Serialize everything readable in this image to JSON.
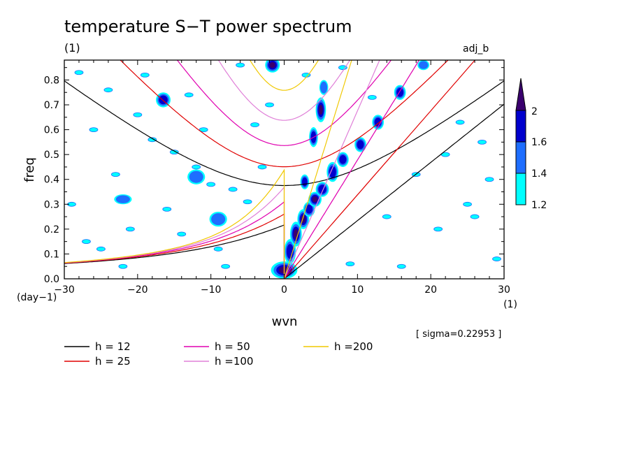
{
  "chart_data": {
    "type": "contour",
    "title": "temperature S−T power spectrum",
    "subtitle_units": "(1)",
    "corner_label": "adj_b",
    "xlabel": "wvn",
    "x_units": "(1)",
    "ylabel": "freq",
    "y_units": "(day−1)",
    "xlim": [
      -30,
      30
    ],
    "ylim": [
      0,
      0.88
    ],
    "x_ticks": [
      -30,
      -20,
      -10,
      0,
      10,
      20,
      30
    ],
    "x_tick_labels": [
      "−30",
      "−20",
      "−10",
      "0",
      "10",
      "20",
      "30"
    ],
    "y_ticks": [
      0.0,
      0.1,
      0.2,
      0.3,
      0.4,
      0.5,
      0.6,
      0.7,
      0.8
    ],
    "y_tick_labels": [
      "0.0",
      "0.1",
      "0.2",
      "0.3",
      "0.4",
      "0.5",
      "0.6",
      "0.7",
      "0.8"
    ],
    "sigma_label": "[ sigma=0.22953 ]",
    "colorbar": {
      "levels": [
        1.2,
        1.4,
        1.6,
        2
      ],
      "level_labels": [
        "1.2",
        "1.4",
        "1.6",
        "2"
      ],
      "colors": [
        "#00ffff",
        "#1e6eff",
        "#0000cd",
        "#3a006e"
      ]
    },
    "dispersion_curves": [
      {
        "label": "h = 12",
        "h": 12,
        "color": "#000000"
      },
      {
        "label": "h = 25",
        "h": 25,
        "color": "#e00000"
      },
      {
        "label": "h = 50",
        "h": 50,
        "color": "#e000b0"
      },
      {
        "label": "h =100",
        "h": 100,
        "color": "#e080d8"
      },
      {
        "label": "h =200",
        "h": 200,
        "color": "#f0c800"
      }
    ],
    "spectral_blobs": [
      {
        "x": 0,
        "y": 0.035,
        "rx": 1.8,
        "ry": 0.035,
        "level": 4
      },
      {
        "x": 0.8,
        "y": 0.11,
        "rx": 0.8,
        "ry": 0.05,
        "level": 3
      },
      {
        "x": 1.6,
        "y": 0.18,
        "rx": 0.8,
        "ry": 0.05,
        "level": 4
      },
      {
        "x": 2.6,
        "y": 0.24,
        "rx": 0.8,
        "ry": 0.04,
        "level": 4
      },
      {
        "x": 3.4,
        "y": 0.28,
        "rx": 0.8,
        "ry": 0.03,
        "level": 3
      },
      {
        "x": 4.2,
        "y": 0.32,
        "rx": 0.9,
        "ry": 0.03,
        "level": 4
      },
      {
        "x": 5.2,
        "y": 0.36,
        "rx": 0.9,
        "ry": 0.03,
        "level": 3
      },
      {
        "x": 6.6,
        "y": 0.43,
        "rx": 0.8,
        "ry": 0.04,
        "level": 3
      },
      {
        "x": 8.0,
        "y": 0.48,
        "rx": 0.8,
        "ry": 0.03,
        "level": 3
      },
      {
        "x": 10.4,
        "y": 0.54,
        "rx": 0.8,
        "ry": 0.03,
        "level": 3
      },
      {
        "x": 12.8,
        "y": 0.63,
        "rx": 0.8,
        "ry": 0.03,
        "level": 3
      },
      {
        "x": 15.8,
        "y": 0.75,
        "rx": 0.8,
        "ry": 0.03,
        "level": 3
      },
      {
        "x": 5.0,
        "y": 0.68,
        "rx": 0.7,
        "ry": 0.05,
        "level": 4
      },
      {
        "x": 4.0,
        "y": 0.57,
        "rx": 0.6,
        "ry": 0.04,
        "level": 3
      },
      {
        "x": 5.4,
        "y": 0.77,
        "rx": 0.6,
        "ry": 0.03,
        "level": 2
      },
      {
        "x": -1.6,
        "y": 0.86,
        "rx": 1.0,
        "ry": 0.03,
        "level": 4
      },
      {
        "x": 2.8,
        "y": 0.39,
        "rx": 0.6,
        "ry": 0.03,
        "level": 3
      },
      {
        "x": -16.5,
        "y": 0.72,
        "rx": 1.0,
        "ry": 0.03,
        "level": 3
      },
      {
        "x": -9.0,
        "y": 0.24,
        "rx": 1.2,
        "ry": 0.03,
        "level": 2
      },
      {
        "x": -12.0,
        "y": 0.41,
        "rx": 1.2,
        "ry": 0.03,
        "level": 2
      },
      {
        "x": -22.0,
        "y": 0.32,
        "rx": 1.2,
        "ry": 0.02,
        "level": 2
      },
      {
        "x": 19.0,
        "y": 0.86,
        "rx": 0.8,
        "ry": 0.02,
        "level": 2
      }
    ],
    "scatter_blobs": [
      [
        -28,
        0.83
      ],
      [
        -25,
        0.12
      ],
      [
        -24,
        0.76
      ],
      [
        -22,
        0.05
      ],
      [
        -20,
        0.66
      ],
      [
        -18,
        0.56
      ],
      [
        -15,
        0.51
      ],
      [
        -12,
        0.45
      ],
      [
        -10,
        0.38
      ],
      [
        -7,
        0.36
      ],
      [
        -5,
        0.31
      ],
      [
        -26,
        0.6
      ],
      [
        -29,
        0.3
      ],
      [
        -14,
        0.18
      ],
      [
        -8,
        0.05
      ],
      [
        -4,
        0.62
      ],
      [
        -6,
        0.86
      ],
      [
        -19,
        0.82
      ],
      [
        -27,
        0.15
      ],
      [
        -23,
        0.42
      ],
      [
        -3,
        0.45
      ],
      [
        -11,
        0.6
      ],
      [
        14,
        0.25
      ],
      [
        21,
        0.2
      ],
      [
        25,
        0.3
      ],
      [
        22,
        0.5
      ],
      [
        27,
        0.55
      ],
      [
        29,
        0.08
      ],
      [
        26,
        0.25
      ],
      [
        24,
        0.63
      ],
      [
        18,
        0.42
      ],
      [
        8,
        0.85
      ],
      [
        12,
        0.73
      ],
      [
        16,
        0.05
      ],
      [
        28,
        0.4
      ],
      [
        9,
        0.06
      ],
      [
        -16,
        0.28
      ],
      [
        -2,
        0.7
      ],
      [
        -13,
        0.74
      ],
      [
        -21,
        0.2
      ],
      [
        -9,
        0.12
      ],
      [
        3,
        0.82
      ]
    ]
  },
  "legend": {
    "h12": "h = 12",
    "h25": "h = 25",
    "h50": "h = 50",
    "h100": "h =100",
    "h200": "h =200"
  }
}
